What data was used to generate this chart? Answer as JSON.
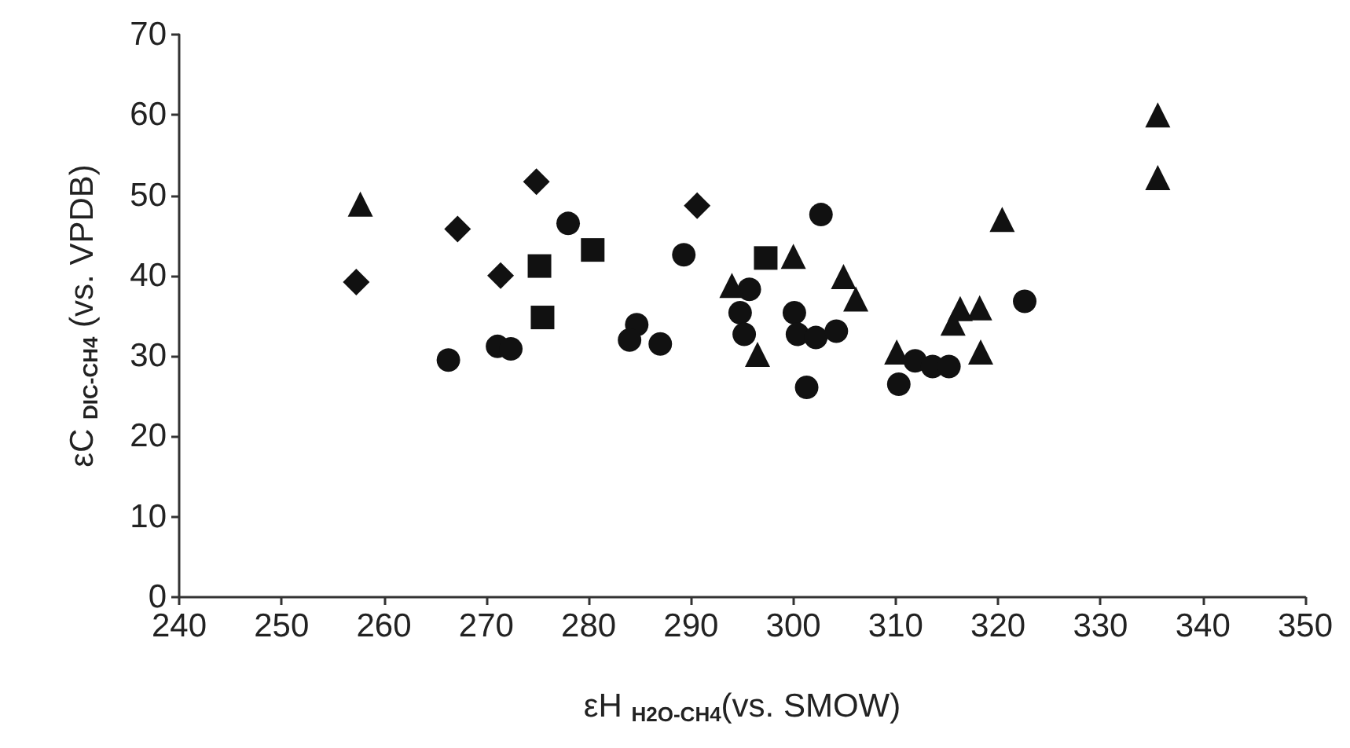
{
  "chart_data": {
    "type": "scatter",
    "xlabel": "εH $_{H2O-CH4}$(vs. SMOW)",
    "ylabel": "εC $_{DIC-CH4}$ (vs. VPDB)",
    "xlim": [
      240,
      350
    ],
    "xticks": [
      240,
      250,
      260,
      270,
      280,
      290,
      300,
      310,
      320,
      330,
      340,
      350
    ],
    "ylim": [
      0,
      70
    ],
    "yticks": [
      0,
      10,
      20,
      30,
      40,
      50,
      60,
      70
    ],
    "grid": false,
    "series": [
      {
        "marker": "circle",
        "color": "#111111",
        "x": [
          278.0,
          266.3,
          271.1,
          272.4,
          289.3,
          284.7,
          284.0,
          287.0,
          302.7,
          295.7,
          294.8,
          295.2,
          300.1,
          300.4,
          302.2,
          304.2,
          301.3,
          311.9,
          313.6,
          315.2,
          310.3,
          322.6
        ],
        "values": [
          46.5,
          29.5,
          31.2,
          30.9,
          42.6,
          33.9,
          32.0,
          31.5,
          47.6,
          38.3,
          35.4,
          32.7,
          35.4,
          32.7,
          32.3,
          33.1,
          26.1,
          29.4,
          28.7,
          28.7,
          26.5,
          36.8
        ]
      },
      {
        "marker": "triangle",
        "color": "#111111",
        "x": [
          257.7,
          300.0,
          294.0,
          296.5,
          304.9,
          306.1,
          310.1,
          315.6,
          316.3,
          318.2,
          318.3,
          320.4,
          335.6,
          335.6
        ],
        "values": [
          48.9,
          42.4,
          38.8,
          30.2,
          39.9,
          37.1,
          30.5,
          34.1,
          35.9,
          36.0,
          30.5,
          47.0,
          60.0,
          52.2
        ]
      },
      {
        "marker": "square",
        "color": "#111111",
        "x": [
          280.4,
          275.2,
          275.5,
          297.3
        ],
        "values": [
          43.2,
          41.2,
          34.8,
          42.2
        ]
      },
      {
        "marker": "diamond",
        "color": "#111111",
        "x": [
          257.3,
          267.2,
          274.9,
          271.4,
          290.6
        ],
        "values": [
          39.2,
          45.8,
          51.7,
          40.0,
          48.7
        ]
      }
    ]
  }
}
